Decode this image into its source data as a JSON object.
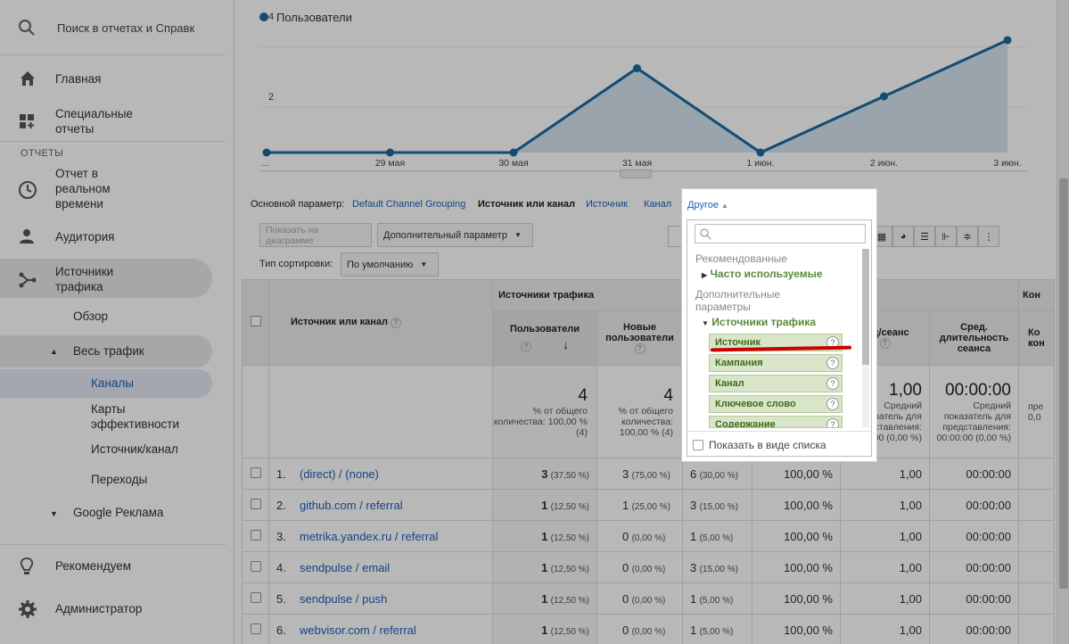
{
  "sidebar": {
    "search_placeholder": "Поиск в отчетах и Справк",
    "home": "Главная",
    "custom_reports": "Специальные отчеты",
    "section_reports": "ОТЧЕТЫ",
    "realtime": "Отчет в реальном времени",
    "audience": "Аудитория",
    "acquisition": "Источники трафика",
    "overview": "Обзор",
    "all_traffic": "Весь трафик",
    "channels": "Каналы",
    "treemaps": "Карты эффективности",
    "source_medium": "Источник/канал",
    "referrals": "Переходы",
    "google_ads": "Google Реклама",
    "discover": "Рекомендуем",
    "admin": "Администратор"
  },
  "chart_data": {
    "type": "area",
    "title": "",
    "xlabel": "",
    "ylabel": "",
    "categories": [
      "...",
      "29 мая",
      "30 мая",
      "31 мая",
      "1 июн.",
      "2 июн.",
      "3 июн."
    ],
    "series": [
      {
        "name": "Пользователи",
        "values": [
          0,
          0,
          0,
          3,
          0,
          2,
          4
        ]
      }
    ],
    "y_ticks": [
      "4",
      "2"
    ],
    "ylim": [
      0,
      4.2
    ],
    "color": "#1a6aa0",
    "fill": "#d4e4ef"
  },
  "params": {
    "label": "Основной параметр:",
    "default_channel": "Default Channel Grouping",
    "source_medium": "Источник или канал",
    "source": "Источник",
    "medium": "Канал",
    "other": "Другое"
  },
  "controls": {
    "plot_rows": "Показать на диаграмме",
    "secondary_dim": "Дополнительный параметр",
    "sort_label": "Тип сортировки:",
    "sort_value": "По умолчанию"
  },
  "table": {
    "dim_header": "Источник или канал",
    "group_acq": "Источники трафика",
    "group_conv": "Кон",
    "col_users": "Пользователи",
    "col_new_users": "Новые пользователи",
    "col_pages": "ниц/сеанс",
    "col_duration": "Сред. длительность сеанса",
    "col_conv": "Ко кон",
    "totals": {
      "users": "4",
      "users_sub": "% от общего количества: 100,00 % (4)",
      "new_users": "4",
      "new_users_sub": "% от общего количества: 100,00 % (4)",
      "pages": "1,00",
      "pages_sub": "Средний показатель для представления: ,00 (0,00 %)",
      "duration": "00:00:00",
      "duration_sub": "Средний показатель для представления: 00:00:00 (0,00 %)",
      "conv_sub": "пре 0,0"
    },
    "rows": [
      {
        "n": "1.",
        "name": "(direct) / (none)",
        "users": "3",
        "users_pct": "(37,50 %)",
        "new": "3",
        "new_pct": "(75,00 %)",
        "sess": "6",
        "sess_pct": "(30,00 %)",
        "bounce": "100,00 %",
        "pages": "1,00",
        "dur": "00:00:00"
      },
      {
        "n": "2.",
        "name": "github.com / referral",
        "users": "1",
        "users_pct": "(12,50 %)",
        "new": "1",
        "new_pct": "(25,00 %)",
        "sess": "3",
        "sess_pct": "(15,00 %)",
        "bounce": "100,00 %",
        "pages": "1,00",
        "dur": "00:00:00"
      },
      {
        "n": "3.",
        "name": "metrika.yandex.ru / referral",
        "users": "1",
        "users_pct": "(12,50 %)",
        "new": "0",
        "new_pct": "(0,00 %)",
        "sess": "1",
        "sess_pct": "(5,00 %)",
        "bounce": "100,00 %",
        "pages": "1,00",
        "dur": "00:00:00"
      },
      {
        "n": "4.",
        "name": "sendpulse / email",
        "users": "1",
        "users_pct": "(12,50 %)",
        "new": "0",
        "new_pct": "(0,00 %)",
        "sess": "3",
        "sess_pct": "(15,00 %)",
        "bounce": "100,00 %",
        "pages": "1,00",
        "dur": "00:00:00"
      },
      {
        "n": "5.",
        "name": "sendpulse / push",
        "users": "1",
        "users_pct": "(12,50 %)",
        "new": "0",
        "new_pct": "(0,00 %)",
        "sess": "1",
        "sess_pct": "(5,00 %)",
        "bounce": "100,00 %",
        "pages": "1,00",
        "dur": "00:00:00"
      },
      {
        "n": "6.",
        "name": "webvisor.com / referral",
        "users": "1",
        "users_pct": "(12,50 %)",
        "new": "0",
        "new_pct": "(0,00 %)",
        "sess": "1",
        "sess_pct": "(5,00 %)",
        "bounce": "100,00 %",
        "pages": "1,00",
        "dur": "00:00:00"
      }
    ]
  },
  "dropdown": {
    "tab_label": "Другое",
    "recommended": "Рекомендованные",
    "frequent": "Часто используемые",
    "additional": "Дополнительные параметры",
    "acq_group": "Источники трафика",
    "items": [
      "Источник",
      "Кампания",
      "Канал",
      "Ключевое слово",
      "Содержание"
    ],
    "list_view": "Показать в виде списка"
  }
}
